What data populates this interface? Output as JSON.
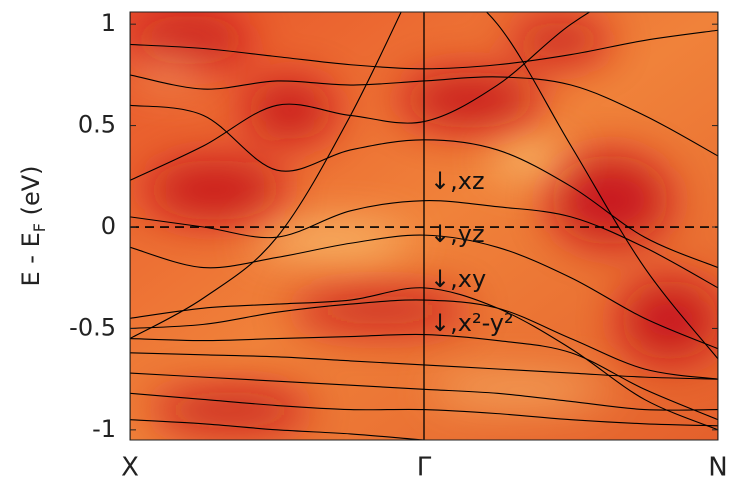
{
  "chart_data": {
    "type": "line",
    "ylabel": [
      "E - E",
      "F",
      " (eV)"
    ],
    "xlim": [
      0,
      2
    ],
    "xticks": [
      {
        "value": 0,
        "label": "X"
      },
      {
        "value": 1,
        "label": "Γ"
      },
      {
        "value": 2,
        "label": "N"
      }
    ],
    "ylim": [
      -1.05,
      1.06
    ],
    "yticks": [
      -1,
      -0.5,
      0,
      0.5,
      1
    ],
    "hline": 0,
    "annotations": [
      "↓,xz",
      "↓,yz",
      "↓,xy",
      "↓,x²-y²"
    ],
    "x": [
      0,
      0.25,
      0.5,
      0.75,
      1,
      1.25,
      1.5,
      1.75,
      2
    ],
    "series": [
      {
        "color": "#000000",
        "values": [
          0.9,
          0.88,
          0.84,
          0.8,
          0.78,
          0.8,
          0.85,
          0.92,
          0.97
        ]
      },
      {
        "color": "#000000",
        "values": [
          0.75,
          0.68,
          0.72,
          0.7,
          0.72,
          0.74,
          0.7,
          0.55,
          0.35
        ]
      },
      {
        "color": "#000000",
        "values": [
          0.6,
          0.55,
          0.28,
          0.38,
          0.43,
          0.38,
          0.2,
          -0.05,
          -0.2
        ]
      },
      {
        "color": "#000000",
        "values": [
          0.23,
          0.4,
          0.6,
          0.55,
          0.52,
          0.7,
          1.0,
          1.2,
          1.3
        ]
      },
      {
        "color": "#000000",
        "values": [
          -0.55,
          -0.35,
          -0.05,
          0.55,
          1.3,
          null,
          null,
          null,
          null
        ]
      },
      {
        "color": "#000000",
        "values": [
          0.05,
          0.0,
          -0.05,
          0.08,
          0.13,
          0.1,
          0.05,
          -0.1,
          -0.3
        ]
      },
      {
        "color": "#000000",
        "values": [
          -0.1,
          -0.2,
          -0.15,
          -0.08,
          -0.04,
          -0.1,
          -0.25,
          -0.45,
          -0.6
        ]
      },
      {
        "color": "#000000",
        "values": [
          -0.45,
          -0.4,
          -0.38,
          -0.36,
          -0.3,
          -0.4,
          -0.6,
          -0.85,
          -1.0
        ]
      },
      {
        "color": "#000000",
        "values": [
          -0.5,
          -0.48,
          -0.42,
          -0.38,
          -0.36,
          -0.4,
          -0.55,
          -0.7,
          -0.75
        ]
      },
      {
        "color": "#000000",
        "values": [
          -0.55,
          -0.56,
          -0.55,
          -0.54,
          -0.53,
          -0.56,
          -0.62,
          -0.8,
          -0.95
        ]
      },
      {
        "color": "#000000",
        "values": [
          -0.62,
          -0.63,
          -0.64,
          -0.66,
          -0.68,
          -0.7,
          -0.72,
          -0.74,
          -0.75
        ]
      },
      {
        "color": "#000000",
        "values": [
          -0.72,
          -0.74,
          -0.76,
          -0.78,
          -0.8,
          -0.82,
          -0.86,
          -0.9,
          -0.9
        ]
      },
      {
        "color": "#000000",
        "values": [
          -0.82,
          -0.85,
          -0.88,
          -0.9,
          -0.9,
          -0.92,
          -0.95,
          -0.97,
          -0.98
        ]
      },
      {
        "color": "#000000",
        "values": [
          -0.95,
          -0.97,
          -1.0,
          -1.02,
          -1.05,
          -1.08,
          null,
          null,
          null
        ]
      },
      {
        "color": "#000000",
        "values": [
          null,
          null,
          null,
          null,
          1.3,
          1.0,
          0.4,
          -0.2,
          -0.65
        ]
      }
    ]
  }
}
